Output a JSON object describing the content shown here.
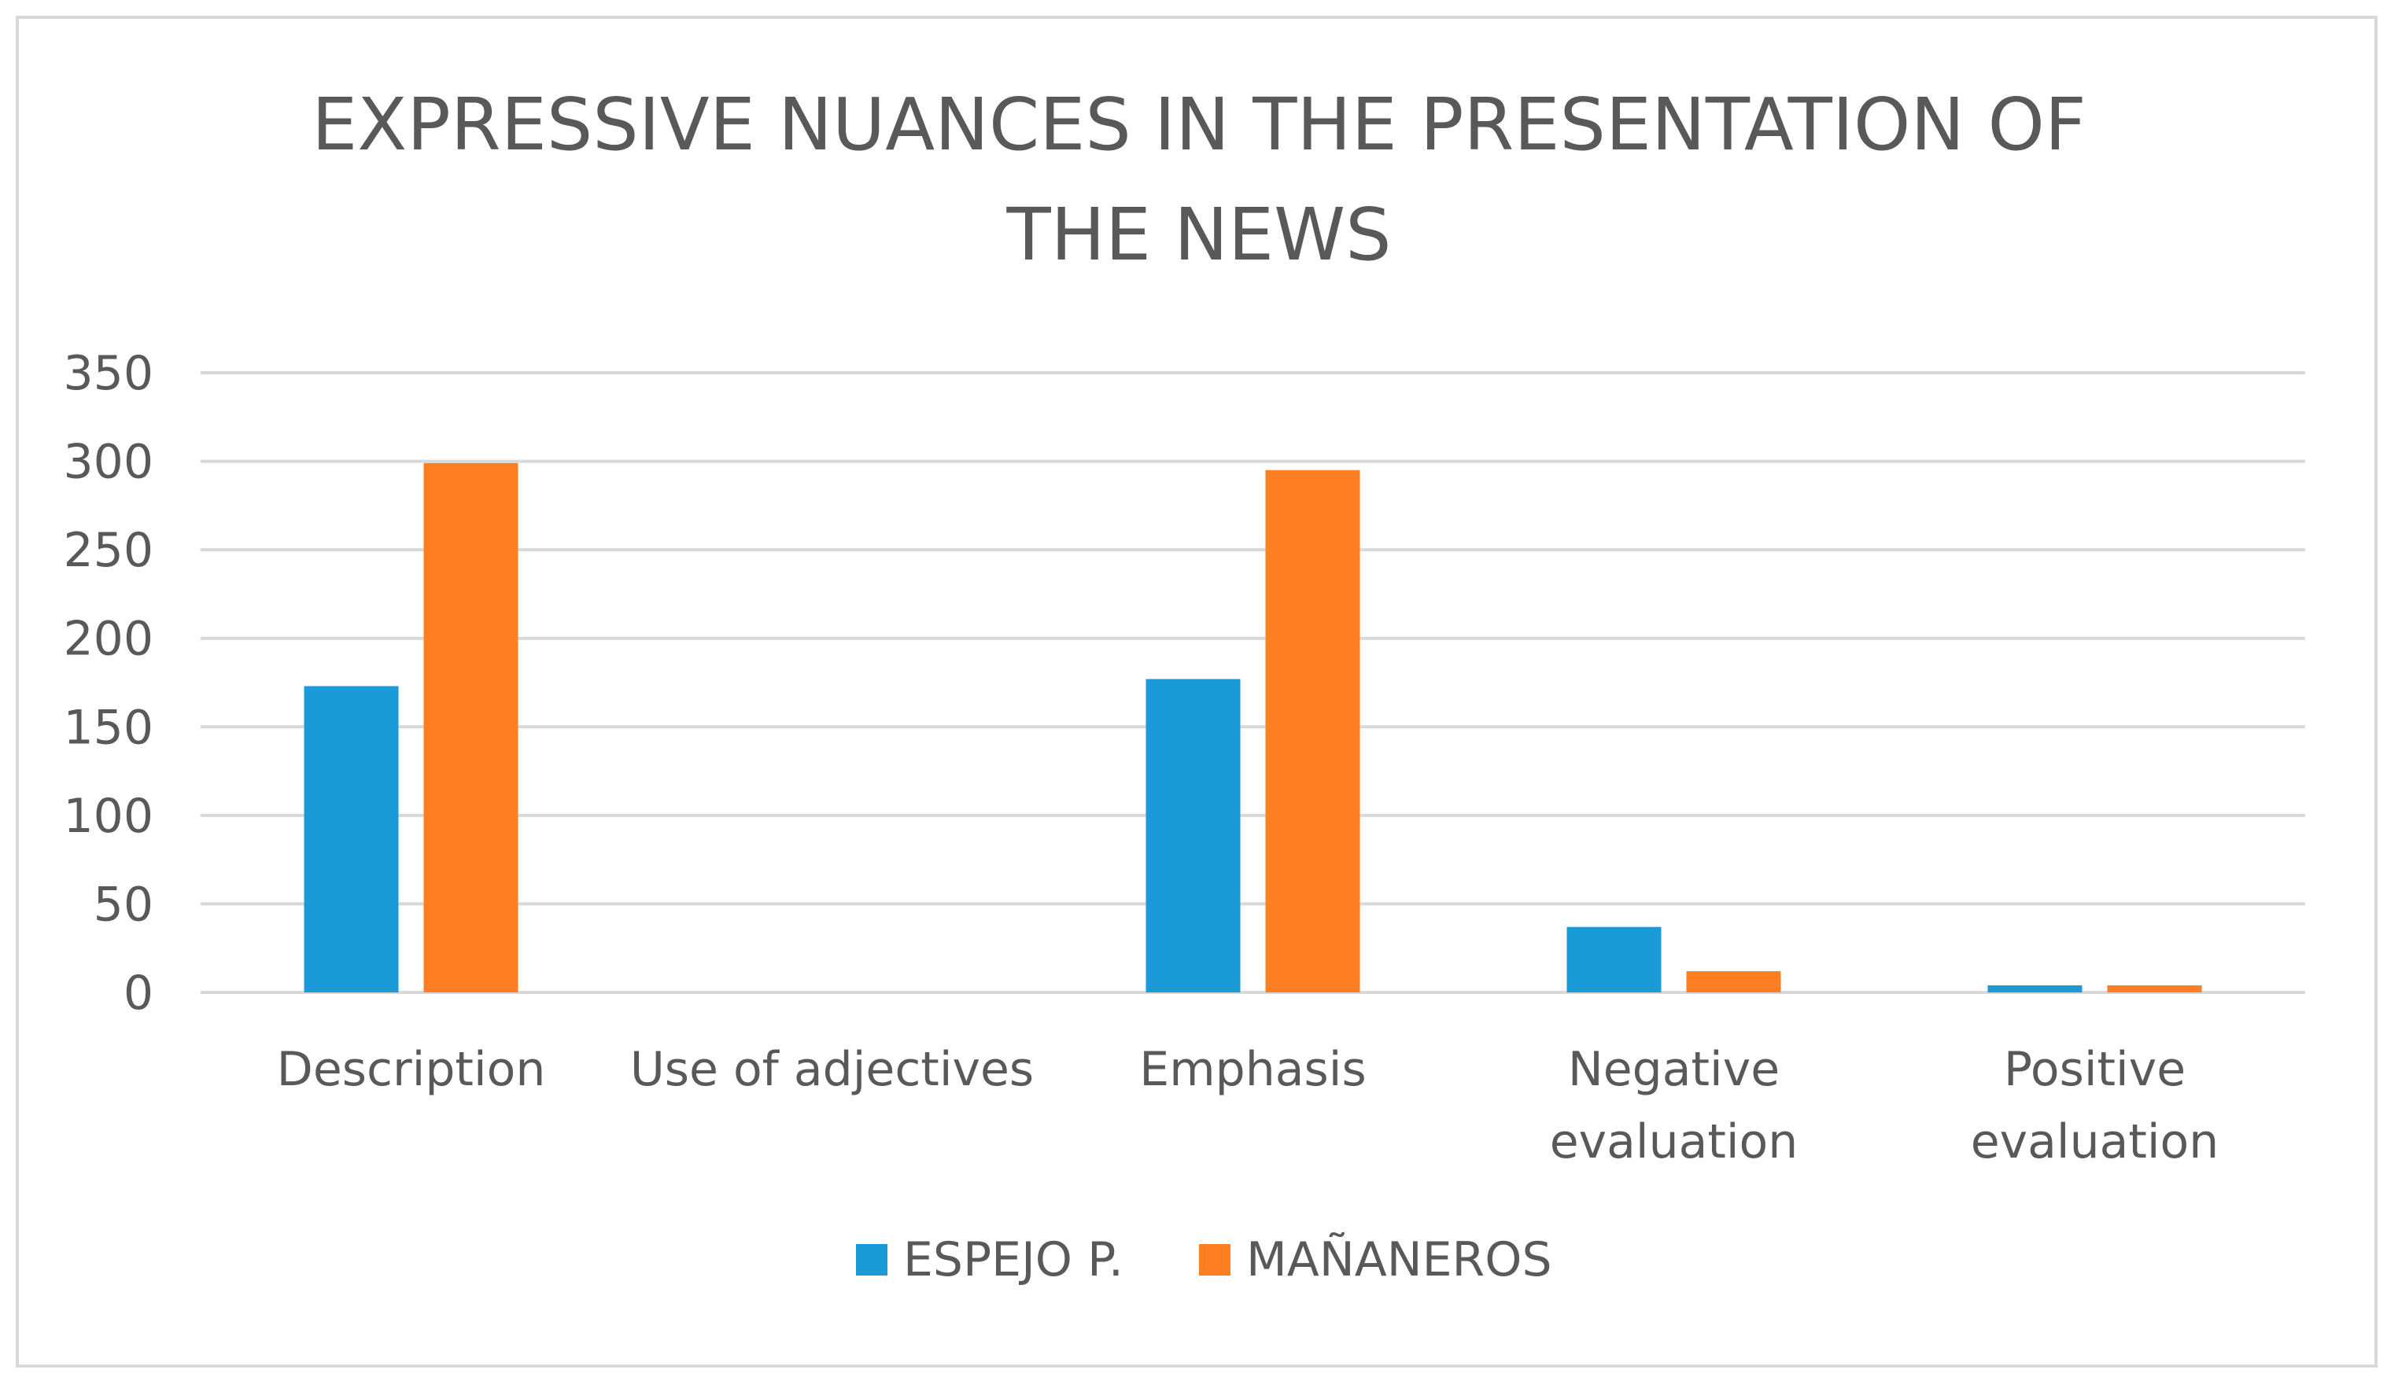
{
  "chart_data": {
    "type": "bar",
    "title": "EXPRESSIVE NUANCES IN THE PRESENTATION OF THE NEWS",
    "title_lines": [
      "EXPRESSIVE NUANCES IN THE PRESENTATION OF",
      "THE NEWS"
    ],
    "categories": [
      "Description",
      "Use of adjectives",
      "Emphasis",
      "Negative evaluation",
      "Positive evaluation"
    ],
    "category_lines": [
      [
        "Description"
      ],
      [
        "Use of adjectives"
      ],
      [
        "Emphasis"
      ],
      [
        "Negative",
        "evaluation"
      ],
      [
        "Positive",
        "evaluation"
      ]
    ],
    "series": [
      {
        "name": "ESPEJO P.",
        "color": "#1a9ad6",
        "values": [
          173,
          0,
          177,
          37,
          4
        ]
      },
      {
        "name": "MAÑANEROS",
        "color": "#fd7f22",
        "values": [
          299,
          0,
          295,
          12,
          4
        ]
      }
    ],
    "ylim": [
      0,
      350
    ],
    "yticks": [
      0,
      50,
      100,
      150,
      200,
      250,
      300,
      350
    ],
    "xlabel": "",
    "ylabel": "",
    "grid": true,
    "legend": "bottom"
  }
}
